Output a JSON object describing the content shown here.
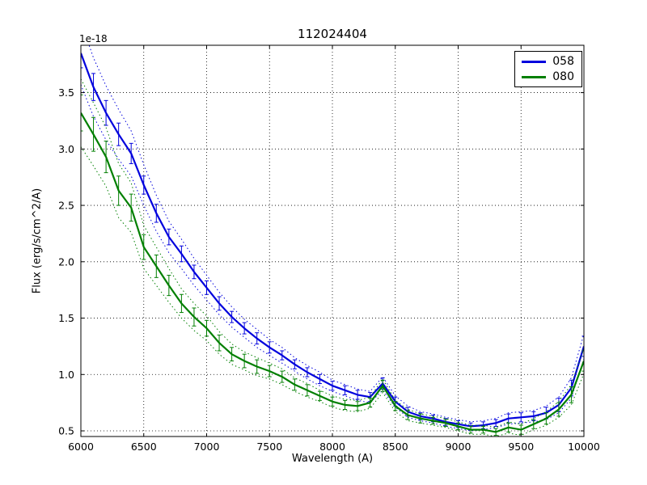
{
  "chart_data": {
    "type": "line",
    "title": "112024404",
    "xlabel": "Wavelength (A)",
    "ylabel": "Flux (erg/s/cm^2/A)",
    "offset_text": "1e-18",
    "xlim": [
      6000,
      10000
    ],
    "ylim": [
      0.45,
      3.92
    ],
    "xticks": [
      6000,
      6500,
      7000,
      7500,
      8000,
      8500,
      9000,
      9500,
      10000
    ],
    "xtick_labels": [
      "6000",
      "6500",
      "7000",
      "7500",
      "8000",
      "8500",
      "9000",
      "9500",
      "10000"
    ],
    "yticks": [
      0.5,
      1.0,
      1.5,
      2.0,
      2.5,
      3.0,
      3.5
    ],
    "ytick_labels": [
      "0.5",
      "1.0",
      "1.5",
      "2.0",
      "2.5",
      "3.0",
      "3.5"
    ],
    "grid": true,
    "grid_style": "dotted",
    "legend_position": "upper right",
    "x": [
      6000,
      6100,
      6200,
      6300,
      6400,
      6500,
      6600,
      6700,
      6800,
      6900,
      7000,
      7100,
      7200,
      7300,
      7400,
      7500,
      7600,
      7700,
      7800,
      7900,
      8000,
      8100,
      8200,
      8300,
      8400,
      8500,
      8600,
      8700,
      8800,
      8900,
      9000,
      9100,
      9200,
      9300,
      9400,
      9500,
      9600,
      9700,
      9800,
      9900,
      10000
    ],
    "series": [
      {
        "name": "058",
        "color": "#0000dd",
        "values": [
          3.85,
          3.55,
          3.32,
          3.13,
          2.96,
          2.68,
          2.43,
          2.22,
          2.07,
          1.91,
          1.77,
          1.63,
          1.51,
          1.41,
          1.32,
          1.24,
          1.17,
          1.09,
          1.02,
          0.96,
          0.9,
          0.86,
          0.82,
          0.8,
          0.92,
          0.76,
          0.67,
          0.63,
          0.61,
          0.58,
          0.56,
          0.54,
          0.55,
          0.57,
          0.61,
          0.62,
          0.63,
          0.66,
          0.73,
          0.88,
          1.25
        ],
        "errors": [
          0.13,
          0.12,
          0.11,
          0.1,
          0.09,
          0.08,
          0.08,
          0.07,
          0.07,
          0.06,
          0.06,
          0.06,
          0.05,
          0.05,
          0.05,
          0.05,
          0.04,
          0.04,
          0.04,
          0.04,
          0.04,
          0.04,
          0.04,
          0.04,
          0.05,
          0.04,
          0.04,
          0.03,
          0.03,
          0.03,
          0.03,
          0.03,
          0.03,
          0.03,
          0.04,
          0.04,
          0.04,
          0.05,
          0.06,
          0.07,
          0.09
        ],
        "band": [
          0.28,
          0.26,
          0.24,
          0.22,
          0.2,
          0.18,
          0.16,
          0.14,
          0.13,
          0.12,
          0.11,
          0.1,
          0.09,
          0.08,
          0.08,
          0.07,
          0.07,
          0.06,
          0.06,
          0.06,
          0.05,
          0.05,
          0.05,
          0.05,
          0.06,
          0.05,
          0.05,
          0.04,
          0.04,
          0.04,
          0.04,
          0.04,
          0.04,
          0.04,
          0.05,
          0.05,
          0.05,
          0.06,
          0.07,
          0.09,
          0.11
        ]
      },
      {
        "name": "080",
        "color": "#007f00",
        "values": [
          3.32,
          3.13,
          2.93,
          2.63,
          2.48,
          2.13,
          1.96,
          1.79,
          1.63,
          1.51,
          1.41,
          1.28,
          1.18,
          1.12,
          1.07,
          1.03,
          0.98,
          0.91,
          0.86,
          0.81,
          0.76,
          0.73,
          0.72,
          0.75,
          0.9,
          0.72,
          0.64,
          0.61,
          0.59,
          0.57,
          0.54,
          0.51,
          0.51,
          0.49,
          0.53,
          0.51,
          0.56,
          0.61,
          0.69,
          0.82,
          1.12
        ],
        "errors": [
          0.16,
          0.15,
          0.14,
          0.13,
          0.12,
          0.11,
          0.1,
          0.09,
          0.08,
          0.08,
          0.07,
          0.07,
          0.06,
          0.06,
          0.06,
          0.05,
          0.05,
          0.05,
          0.05,
          0.04,
          0.04,
          0.04,
          0.04,
          0.04,
          0.05,
          0.04,
          0.04,
          0.04,
          0.03,
          0.03,
          0.03,
          0.03,
          0.03,
          0.03,
          0.04,
          0.04,
          0.04,
          0.05,
          0.06,
          0.07,
          0.09
        ],
        "band": [
          0.3,
          0.28,
          0.26,
          0.24,
          0.22,
          0.19,
          0.17,
          0.15,
          0.13,
          0.12,
          0.11,
          0.1,
          0.09,
          0.08,
          0.08,
          0.07,
          0.07,
          0.06,
          0.06,
          0.05,
          0.05,
          0.05,
          0.05,
          0.05,
          0.06,
          0.05,
          0.05,
          0.04,
          0.04,
          0.04,
          0.04,
          0.04,
          0.04,
          0.04,
          0.05,
          0.05,
          0.05,
          0.06,
          0.07,
          0.09,
          0.11
        ]
      }
    ]
  }
}
